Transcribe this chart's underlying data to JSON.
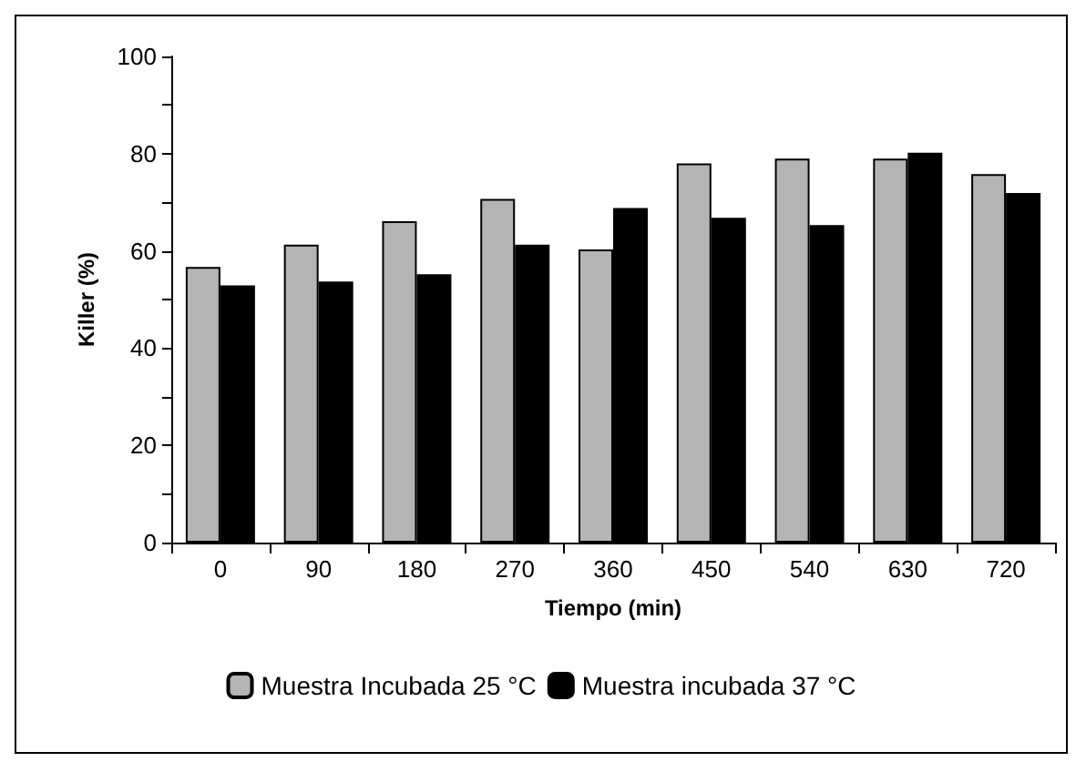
{
  "chart_data": {
    "type": "bar",
    "xlabel": "Tiempo (min)",
    "ylabel": "Killer (%)",
    "categories": [
      "0",
      "90",
      "180",
      "270",
      "360",
      "450",
      "540",
      "630",
      "720"
    ],
    "series": [
      {
        "name": "Muestra Incubada 25 °C",
        "color": "#b4b4b4",
        "values": [
          56.7,
          61.3,
          66.1,
          70.7,
          60.3,
          78.0,
          79.0,
          79.0,
          75.8
        ]
      },
      {
        "name": "Muestra incubada 37 °C",
        "color": "#000000",
        "values": [
          52.9,
          53.7,
          55.2,
          61.3,
          68.8,
          66.8,
          65.3,
          80.2,
          71.9
        ]
      }
    ],
    "ylim": [
      0,
      100
    ],
    "yticks": [
      0,
      {
        "value": 10,
        "label": null
      },
      20,
      {
        "value": 30,
        "label": null
      },
      40,
      {
        "value": 50,
        "label": null
      },
      60,
      {
        "value": 70,
        "label": null
      },
      80,
      {
        "value": 90,
        "label": null
      },
      100
    ],
    "grid": false,
    "legend": "bottom"
  }
}
